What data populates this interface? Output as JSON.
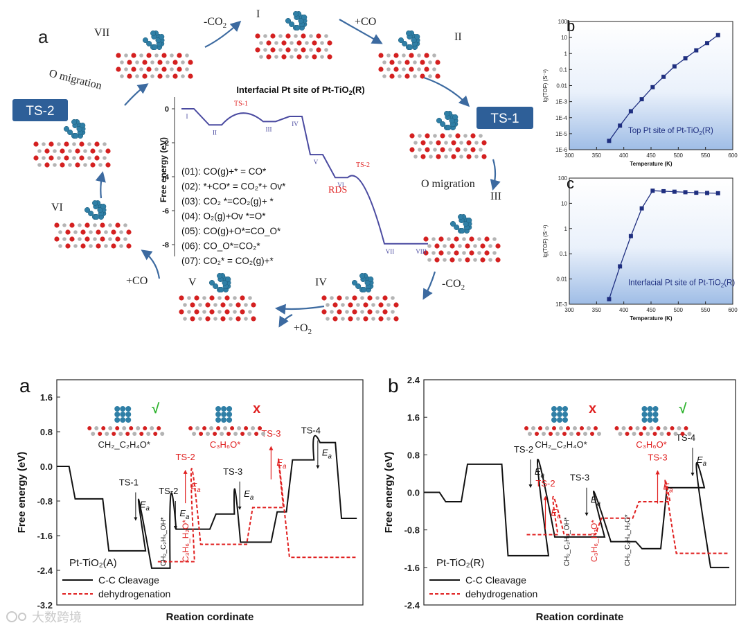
{
  "top_figure": {
    "panel_label": "a",
    "cycle_states": [
      "I",
      "II",
      "III",
      "IV",
      "V",
      "VI",
      "VII"
    ],
    "ts_badges": [
      "TS-1",
      "TS-2"
    ],
    "arrow_labels": {
      "plus_co_1": "+CO",
      "o_migration_1": "O migration",
      "minus_co2_2": "-CO",
      "plus_o2": "+O",
      "plus_co_2": "+CO",
      "o_migration_2": "O migration",
      "minus_co2_1": "-CO"
    },
    "subscript_2": "2",
    "colors": {
      "badge": "#2e5f98",
      "accent_red": "#e02020",
      "pes_line": "#4a4aa0",
      "arrow": "#3c6aa0",
      "pt": "#2f7fa6",
      "ti": "#b4b4b4",
      "o": "#d42020"
    }
  },
  "chart_data": [
    {
      "type": "line",
      "title": "Interfacial Pt site of Pt-TiO",
      "title_sub": "2",
      "title_end": "(R)",
      "ylabel": "Free energy (eV)",
      "ylim": [
        -9,
        0.5
      ],
      "y_ticks": [
        0,
        -2,
        -4,
        -6,
        -8
      ],
      "series": [
        {
          "name": "Interfacial Pt",
          "states": [
            {
              "label": "I",
              "y": 0
            },
            {
              "label": "II",
              "y": -0.95
            },
            {
              "label": "TS-1",
              "y": -0.15,
              "ts": true
            },
            {
              "label": "III",
              "y": -0.75
            },
            {
              "label": "IV",
              "y": -0.45
            },
            {
              "label": "V",
              "y": -2.7
            },
            {
              "label": "VI",
              "y": -4.05
            },
            {
              "label": "TS-2",
              "y": -3.75,
              "ts": true
            },
            {
              "label": "VII",
              "y": -7.95
            },
            {
              "label": "VIII",
              "y": -7.95
            }
          ]
        }
      ],
      "equations": [
        "(01): CO(g)+* = CO*",
        "(02): *+CO* = CO₂*+ Ov*",
        "(03): CO₂ *=CO₂(g)+ *",
        "(04): O₂(g)+Ov *=O*",
        "(05): CO(g)+O*=CO_O*",
        "(06): CO_O*=CO₂*",
        "(07): CO₂* = CO₂(g)+*"
      ],
      "rds_label": "RDS"
    },
    {
      "type": "line",
      "panel_label": "b",
      "ylabel": "lg(TOF) (S⁻¹)",
      "xlabel": "Temperature (K)",
      "xlim": [
        300,
        600
      ],
      "x_ticks": [
        300,
        350,
        400,
        450,
        500,
        550,
        600
      ],
      "ylim_log10": [
        -6,
        2
      ],
      "y_tick_labels": [
        "1E-6",
        "1E-5",
        "1E-4",
        "1E-3",
        "0.01",
        "0.1",
        "1",
        "10",
        "100"
      ],
      "annotation": "Top Pt site of Pt-TiO",
      "annotation_sub": "2",
      "annotation_end": "(R)",
      "x": [
        373,
        393,
        413,
        433,
        453,
        473,
        493,
        513,
        533,
        553,
        573
      ],
      "log10_y": [
        -5.45,
        -4.5,
        -3.6,
        -2.85,
        -2.1,
        -1.45,
        -0.8,
        -0.3,
        0.2,
        0.65,
        1.15
      ]
    },
    {
      "type": "line",
      "panel_label": "c",
      "ylabel": "lg(TOF) (S⁻¹)",
      "xlabel": "Temperature (K)",
      "xlim": [
        300,
        600
      ],
      "x_ticks": [
        300,
        350,
        400,
        450,
        500,
        550,
        600
      ],
      "ylim_log10": [
        -3,
        2
      ],
      "y_tick_labels": [
        "1E-3",
        "0.01",
        "0.1",
        "1",
        "10",
        "100"
      ],
      "annotation": "Interfacial Pt site of Pt-TiO",
      "annotation_sub": "2",
      "annotation_end": "(R)",
      "x": [
        373,
        393,
        413,
        433,
        453,
        473,
        493,
        513,
        533,
        553,
        573
      ],
      "log10_y": [
        -2.8,
        -1.5,
        -0.3,
        0.8,
        1.5,
        1.48,
        1.46,
        1.44,
        1.42,
        1.41,
        1.4
      ]
    },
    {
      "type": "line",
      "panel_label": "a",
      "ylabel": "Free energy (eV)",
      "xlabel": "Reation cordinate",
      "ylim": [
        -3.2,
        2.0
      ],
      "y_tick_labels": [
        "1.6",
        "0.8",
        "0.0",
        "-0.8",
        "-1.6",
        "-2.4",
        "-3.2"
      ],
      "y_ticks": [
        1.6,
        0.8,
        0.0,
        -0.8,
        -1.6,
        -2.4,
        -3.2
      ],
      "system": "Pt-TiO₂(A)",
      "legend": [
        "C-C Cleavage",
        "dehydrogenation"
      ],
      "structure_labels": [
        "CH₂_C₂H₄O*",
        "C₃H₆O*"
      ],
      "marks": [
        "√",
        "x"
      ],
      "ts_labels_black": [
        "TS-1",
        "TS-2",
        "TS-3",
        "TS-4"
      ],
      "ts_labels_red": [
        "TS-2",
        "TS-3"
      ],
      "ea_label": "E",
      "ea_sub": "a",
      "vertical_labels_black": [
        "CH₂_C₂H₅_OH*"
      ],
      "vertical_labels_red": [
        "C₃H₆_H₂O*"
      ],
      "cc_cleavage": {
        "plateaus": [
          [
            0,
            0
          ],
          [
            0.06,
            -0.75
          ],
          [
            0.17,
            -1.95
          ],
          [
            0.31,
            -2.35
          ],
          [
            0.39,
            -1.45
          ],
          [
            0.52,
            -1.1
          ],
          [
            0.6,
            -1.75
          ],
          [
            0.72,
            -1.05
          ],
          [
            0.77,
            0.15
          ],
          [
            0.86,
            0.55
          ],
          [
            0.93,
            -1.2
          ]
        ],
        "barriers": [
          [
            0.235,
            -0.6
          ],
          [
            0.365,
            -0.8
          ],
          [
            0.575,
            -0.35
          ],
          [
            0.83,
            0.6
          ]
        ]
      },
      "dehydrogenation": {
        "plateaus": [
          [
            0.33,
            -2.2
          ],
          [
            0.47,
            -1.8
          ],
          [
            0.64,
            -0.95
          ],
          [
            0.76,
            -2.1
          ]
        ],
        "barriers": [
          [
            0.42,
            -0.05
          ],
          [
            0.7,
            0.5
          ]
        ]
      }
    },
    {
      "type": "line",
      "panel_label": "b",
      "ylabel": "Free energy (eV)",
      "xlabel": "Reation cordinate",
      "ylim": [
        -2.4,
        2.4
      ],
      "y_tick_labels": [
        "2.4",
        "1.6",
        "0.8",
        "0.0",
        "-0.8",
        "-1.6",
        "-2.4"
      ],
      "y_ticks": [
        2.4,
        1.6,
        0.8,
        0.0,
        -0.8,
        -1.6,
        -2.4
      ],
      "system": "Pt-TiO₂(R)",
      "legend": [
        "C-C Cleavage",
        "dehydrogenation"
      ],
      "structure_labels": [
        "CH₂_C₂H₄O*",
        "C₃H₆O*"
      ],
      "marks": [
        "x",
        "√"
      ],
      "ts_labels_black": [
        "TS-1",
        "TS-2",
        "TS-3",
        "TS-4"
      ],
      "ts_labels_red": [
        "TS-2",
        "TS-3"
      ],
      "ea_label": "E",
      "ea_sub": "a",
      "vertical_labels_black": [
        "CH₂_C₂H₅_OH*",
        "CH₂_C₂H₄_H₂O*"
      ],
      "vertical_labels_red": [
        "C₃H₆_H₂O*"
      ],
      "cc_cleavage": {
        "plateaus": [
          [
            0,
            0
          ],
          [
            0.07,
            -0.2
          ],
          [
            0.14,
            0.6
          ],
          [
            0.27,
            -1.35
          ],
          [
            0.42,
            -0.95
          ],
          [
            0.6,
            -1.05
          ],
          [
            0.7,
            -1.2
          ],
          [
            0.78,
            0.1
          ],
          [
            0.92,
            -1.6
          ]
        ],
        "barriers": [
          [
            0.32,
            0.7
          ],
          [
            0.5,
            0.1
          ],
          [
            0.84,
            0.95
          ]
        ]
      },
      "dehydrogenation": {
        "plateaus": [
          [
            0.33,
            -0.9
          ],
          [
            0.45,
            -0.9
          ],
          [
            0.57,
            -0.55
          ],
          [
            0.69,
            -0.2
          ],
          [
            0.81,
            -1.3
          ]
        ],
        "barriers": [
          [
            0.39,
            -0.05
          ],
          [
            0.75,
            0.5
          ]
        ]
      }
    }
  ],
  "watermark": "大数跨境"
}
